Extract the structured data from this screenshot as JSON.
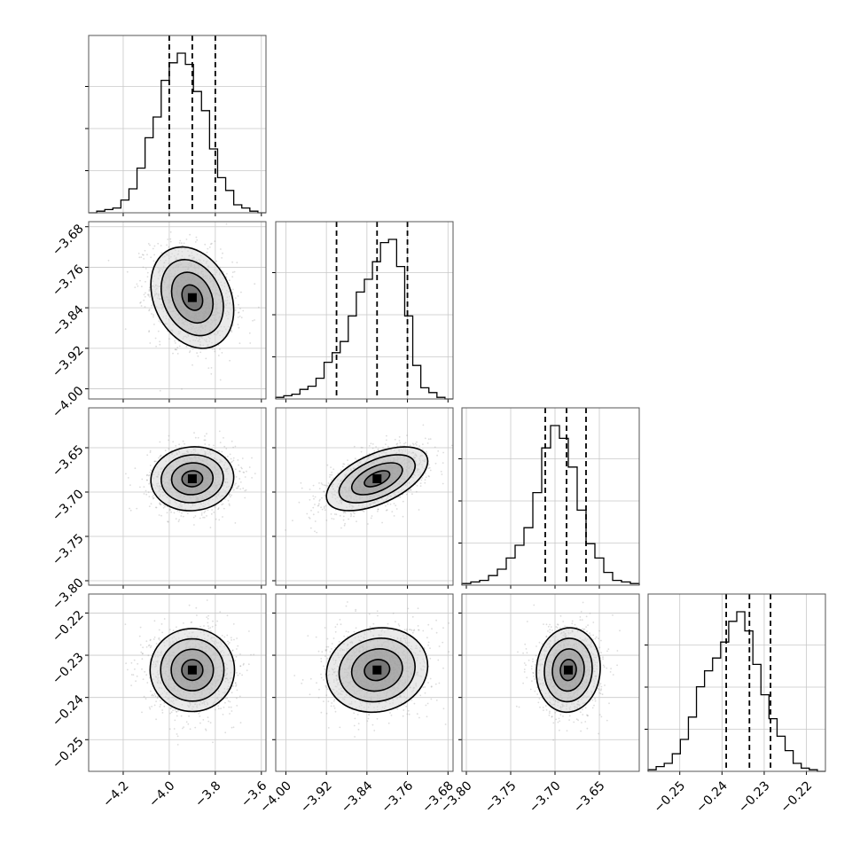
{
  "chart_data": {
    "type": "corner",
    "title": "",
    "grid": true,
    "parameters": [
      {
        "name": "",
        "center": -3.9,
        "sigma": 0.09,
        "range": [
          -4.35,
          -3.58
        ],
        "ticks": [
          -4.2,
          -4.0,
          -3.8,
          -3.6
        ],
        "tick_labels": [
          "−4.2",
          "−4.0",
          "−3.8",
          "−3.6"
        ],
        "quantiles": [
          -4.0,
          -3.9,
          -3.8
        ]
      },
      {
        "name": "",
        "center": -3.82,
        "sigma": 0.05,
        "range": [
          -4.02,
          -3.67
        ],
        "ticks": [
          -4.0,
          -3.92,
          -3.84,
          -3.76,
          -3.68
        ],
        "tick_labels": [
          "−4.00",
          "−3.92",
          "−3.84",
          "−3.76",
          "−3.68"
        ],
        "quantiles": [
          -3.9,
          -3.82,
          -3.76
        ]
      },
      {
        "name": "",
        "center": -3.685,
        "sigma": 0.018,
        "range": [
          -3.805,
          -3.605
        ],
        "ticks": [
          -3.8,
          -3.75,
          -3.7,
          -3.65
        ],
        "tick_labels": [
          "−3.80",
          "−3.75",
          "−3.70",
          "−3.65"
        ],
        "quantiles": [
          -3.711,
          -3.687,
          -3.665
        ]
      },
      {
        "name": "",
        "center": -0.2335,
        "sigma": 0.005,
        "range": [
          -0.2575,
          -0.2155
        ],
        "ticks": [
          -0.25,
          -0.24,
          -0.23,
          -0.22
        ],
        "tick_labels": [
          "−0.25",
          "−0.24",
          "−0.23",
          "−0.22"
        ],
        "quantiles": [
          -0.239,
          -0.2335,
          -0.2285
        ]
      }
    ],
    "hist_heights": [
      [
        0.0,
        0.01,
        0.02,
        0.03,
        0.08,
        0.15,
        0.28,
        0.47,
        0.6,
        0.83,
        0.94,
        1.0,
        0.93,
        0.76,
        0.64,
        0.4,
        0.22,
        0.14,
        0.05,
        0.03,
        0.01,
        0.0
      ],
      [
        0.01,
        0.02,
        0.03,
        0.06,
        0.08,
        0.13,
        0.23,
        0.29,
        0.36,
        0.52,
        0.67,
        0.75,
        0.86,
        0.98,
        1.0,
        0.83,
        0.52,
        0.21,
        0.07,
        0.04,
        0.01,
        0.0
      ],
      [
        0.01,
        0.02,
        0.03,
        0.06,
        0.1,
        0.17,
        0.25,
        0.36,
        0.58,
        0.86,
        1.0,
        0.92,
        0.74,
        0.47,
        0.26,
        0.17,
        0.08,
        0.03,
        0.02,
        0.01
      ],
      [
        0.01,
        0.03,
        0.05,
        0.11,
        0.2,
        0.34,
        0.53,
        0.63,
        0.71,
        0.81,
        0.94,
        1.0,
        0.88,
        0.67,
        0.48,
        0.33,
        0.22,
        0.13,
        0.05,
        0.02,
        0.01,
        0.0
      ]
    ],
    "correlations": {
      "1-0": -0.25,
      "2-0": 0.05,
      "2-1": 0.55,
      "3-0": 0.0,
      "3-1": 0.1,
      "3-2": 0.05
    }
  }
}
